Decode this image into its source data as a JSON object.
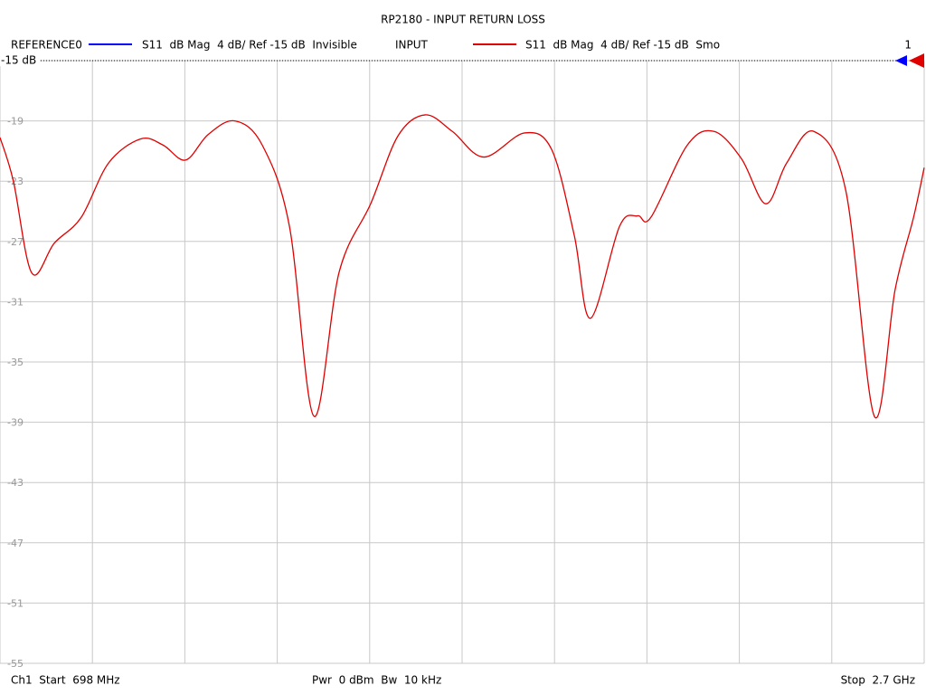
{
  "chart_data": {
    "type": "line",
    "title": "RP2180 - INPUT RETURN LOSS",
    "channel_number": "1",
    "reference_level": -15,
    "reference_label": "-15 dB",
    "series": [
      {
        "name": "REFERENCE0",
        "color": "#0000ff",
        "description": "S11  dB Mag  4 dB/ Ref -15 dB  Invisible",
        "visible": false
      },
      {
        "name": "INPUT",
        "color": "#e00000",
        "description": "S11  dB Mag  4 dB/ Ref -15 dB  Smo",
        "visible": true,
        "values": [
          -20.1,
          -23.0,
          -29.1,
          -27.1,
          -25.4,
          -21.8,
          -20.2,
          -20.6,
          -21.6,
          -19.9,
          -19.0,
          -20.6,
          -26.0,
          -38.6,
          -29.0,
          -24.5,
          -20.0,
          -18.6,
          -19.7,
          -21.4,
          -19.8,
          -20.9,
          -26.6,
          -32.1,
          -26.0,
          -25.3,
          -25.4,
          -20.6,
          -19.7,
          -21.5,
          -24.5,
          -21.8,
          -19.7,
          -23.6,
          -38.6,
          -30.2,
          -25.4,
          -22.1
        ]
      }
    ],
    "x": [
      698,
      727,
      767,
      816,
      874,
      933,
      1002,
      1051,
      1100,
      1149,
      1207,
      1266,
      1325,
      1378,
      1433,
      1501,
      1560,
      1619,
      1678,
      1746,
      1834,
      1893,
      1942,
      1977,
      2040,
      2079,
      2108,
      2187,
      2245,
      2304,
      2357,
      2402,
      2461,
      2530,
      2592,
      2637,
      2677,
      2700
    ],
    "xlim": [
      698,
      2700
    ],
    "x_divisions": 10,
    "ylim": [
      -55,
      -15
    ],
    "yticks": [
      -15,
      -19,
      -23,
      -27,
      -31,
      -35,
      -39,
      -43,
      -47,
      -51,
      -55
    ],
    "grid": true,
    "footer": {
      "start": "Ch1  Start  698 MHz",
      "power": "Pwr  0 dBm  Bw  10 kHz",
      "stop": "Stop  2.7 GHz"
    }
  }
}
